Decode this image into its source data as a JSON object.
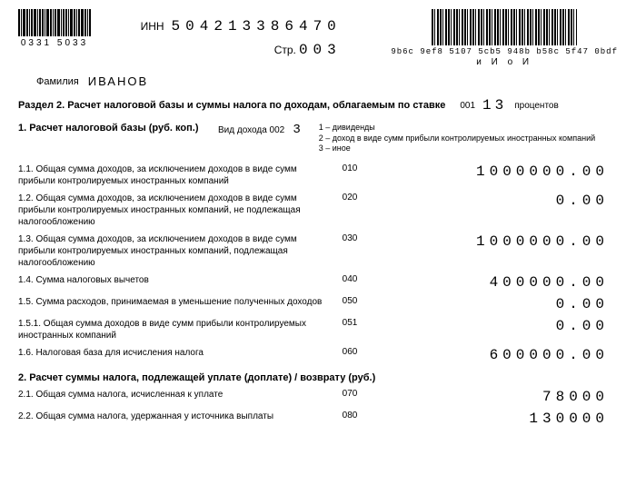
{
  "header": {
    "barcode_left_nums": "0331  5033",
    "inn_label": "ИНН",
    "inn_value": "504213386470",
    "page_label": "Стр.",
    "page_value": "003",
    "pdf417_code": "9b6c 9ef8 5107 5cb5 948b b58c 5f47 0bdf",
    "pdf417_sub": "и  И   о И"
  },
  "surname": {
    "label": "Фамилия",
    "value": "ИВАНОВ"
  },
  "section": {
    "title": "Раздел 2. Расчет налоговой базы и суммы налога по доходам, облагаемым по ставке",
    "code_label": "001",
    "rate": "13",
    "unit": "процентов"
  },
  "row1": {
    "title": "1. Расчет налоговой базы (руб. коп.)",
    "income_label": "Вид дохода   002",
    "income_code": "3",
    "notes_1": "1 – дивиденды",
    "notes_2": "2 – доход в виде сумм прибыли контролируемых иностранных компаний",
    "notes_3": "3 – иное"
  },
  "lines": [
    {
      "label": "1.1. Общая сумма доходов, за исключением доходов в виде сумм прибыли контролируемых иностранных компаний",
      "code": "010",
      "value": "1000000.00"
    },
    {
      "label": "1.2. Общая сумма доходов, за исключением доходов в виде сумм прибыли контролируемых иностранных компаний, не подлежащая налогообложению",
      "code": "020",
      "value": "0.00"
    },
    {
      "label": "1.3. Общая сумма доходов, за исключением доходов в виде сумм прибыли контролируемых иностранных компаний, подлежащая налогообложению",
      "code": "030",
      "value": "1000000.00"
    },
    {
      "label": "1.4. Сумма налоговых вычетов",
      "code": "040",
      "value": "400000.00"
    },
    {
      "label": "1.5. Сумма расходов, принимаемая в уменьшение полученных доходов",
      "code": "050",
      "value": "0.00"
    },
    {
      "label": "1.5.1. Общая сумма доходов в виде сумм прибыли контролируемых иностранных компаний",
      "code": "051",
      "value": "0.00"
    },
    {
      "label": "1.6. Налоговая база для исчисления налога",
      "code": "060",
      "value": "600000.00"
    }
  ],
  "subsection2": {
    "title": "2. Расчет суммы налога, подлежащей уплате (доплате) / возврату (руб.)"
  },
  "lines2": [
    {
      "label": "2.1. Общая сумма налога, исчисленная к уплате",
      "code": "070",
      "value": "78000"
    },
    {
      "label": "2.2. Общая сумма налога, удержанная у источника выплаты",
      "code": "080",
      "value": "130000"
    }
  ]
}
